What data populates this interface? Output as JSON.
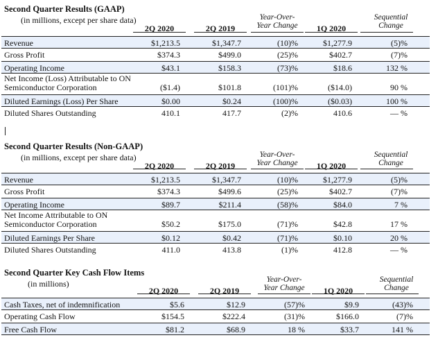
{
  "columns": [
    "2Q 2020",
    "2Q 2019",
    "Year-Over-\nYear Change",
    "1Q 2020",
    "Sequential\nChange"
  ],
  "gaap": {
    "title": "Second Quarter Results (GAAP)",
    "subtitle": "(in millions, except per share data)",
    "headers": {
      "c1": "2Q 2020",
      "c2": "2Q 2019",
      "c3a": "Year-Over-",
      "c3b": "Year Change",
      "c4": "1Q 2020",
      "c5a": "Sequential",
      "c5b": "Change"
    },
    "rows": [
      {
        "label": "Revenue",
        "c1": "$1,213.5",
        "c2": "$1,347.7",
        "c3": "(10)%",
        "c4": "$1,277.9",
        "c5": "(5)%"
      },
      {
        "label": "Gross Profit",
        "c1": "$374.3",
        "c2": "$499.0",
        "c3": "(25)%",
        "c4": "$402.7",
        "c5": "(7)%"
      },
      {
        "label": "Operating Income",
        "c1": "$43.1",
        "c2": "$158.3",
        "c3": "(73)%",
        "c4": "$18.6",
        "c5": "132 %"
      },
      {
        "label": "Net Income (Loss) Attributable to ON",
        "label2": "Semiconductor Corporation",
        "c1": "($1.4)",
        "c2": "$101.8",
        "c3": "(101)%",
        "c4": "($14.0)",
        "c5": "90 %"
      },
      {
        "label": "Diluted Earnings (Loss) Per Share",
        "c1": "$0.00",
        "c2": "$0.24",
        "c3": "(100)%",
        "c4": "($0.03)",
        "c5": "100 %"
      },
      {
        "label": "Diluted Shares Outstanding",
        "c1": "410.1",
        "c2": "417.7",
        "c3": "(2)%",
        "c4": "410.6",
        "c5": "— %"
      }
    ]
  },
  "nongaap": {
    "title": "Second Quarter Results (Non-GAAP)",
    "subtitle": "(in millions, except per share data)",
    "headers": {
      "c1": "2Q 2020",
      "c2": "2Q 2019",
      "c3a": "Year-Over-",
      "c3b": "Year Change",
      "c4": "1Q 2020",
      "c5a": "Sequential",
      "c5b": "Change"
    },
    "rows": [
      {
        "label": "Revenue",
        "c1": "$1,213.5",
        "c2": "$1,347.7",
        "c3": "(10)%",
        "c4": "$1,277.9",
        "c5": "(5)%"
      },
      {
        "label": "Gross Profit",
        "c1": "$374.3",
        "c2": "$499.6",
        "c3": "(25)%",
        "c4": "$402.7",
        "c5": "(7)%"
      },
      {
        "label": "Operating Income",
        "c1": "$89.7",
        "c2": "$211.4",
        "c3": "(58)%",
        "c4": "$84.0",
        "c5": "7 %"
      },
      {
        "label": "Net Income Attributable to ON",
        "label2": "Semiconductor Corporation",
        "c1": "$50.2",
        "c2": "$175.0",
        "c3": "(71)%",
        "c4": "$42.8",
        "c5": "17 %"
      },
      {
        "label": "Diluted Earnings Per Share",
        "c1": "$0.12",
        "c2": "$0.42",
        "c3": "(71)%",
        "c4": "$0.10",
        "c5": "20 %"
      },
      {
        "label": "Diluted Shares Outstanding",
        "c1": "411.0",
        "c2": "413.8",
        "c3": "(1)%",
        "c4": "412.8",
        "c5": "— %"
      }
    ]
  },
  "cashflow": {
    "title": "Second Quarter Key Cash Flow Items",
    "subtitle": "(in millions)",
    "headers": {
      "c1": "2Q 2020",
      "c2": "2Q 2019",
      "c3a": "Year-Over-",
      "c3b": "Year Change",
      "c4": "1Q 2020",
      "c5a": "Sequential",
      "c5b": "Change"
    },
    "rows": [
      {
        "label": "Cash Taxes, net of indemnification",
        "c1": "$5.6",
        "c2": "$12.9",
        "c3": "(57)%",
        "c4": "$9.9",
        "c5": "(43)%"
      },
      {
        "label": "Operating Cash Flow",
        "c1": "$154.5",
        "c2": "$222.4",
        "c3": "(31)%",
        "c4": "$166.0",
        "c5": "(7)%"
      },
      {
        "label": "Free Cash Flow",
        "c1": "$81.2",
        "c2": "$68.9",
        "c3": "18 %",
        "c4": "$33.7",
        "c5": "141 %"
      }
    ]
  },
  "colors": {
    "shaded_row": "#e9f0fb",
    "rule": "#222222"
  }
}
